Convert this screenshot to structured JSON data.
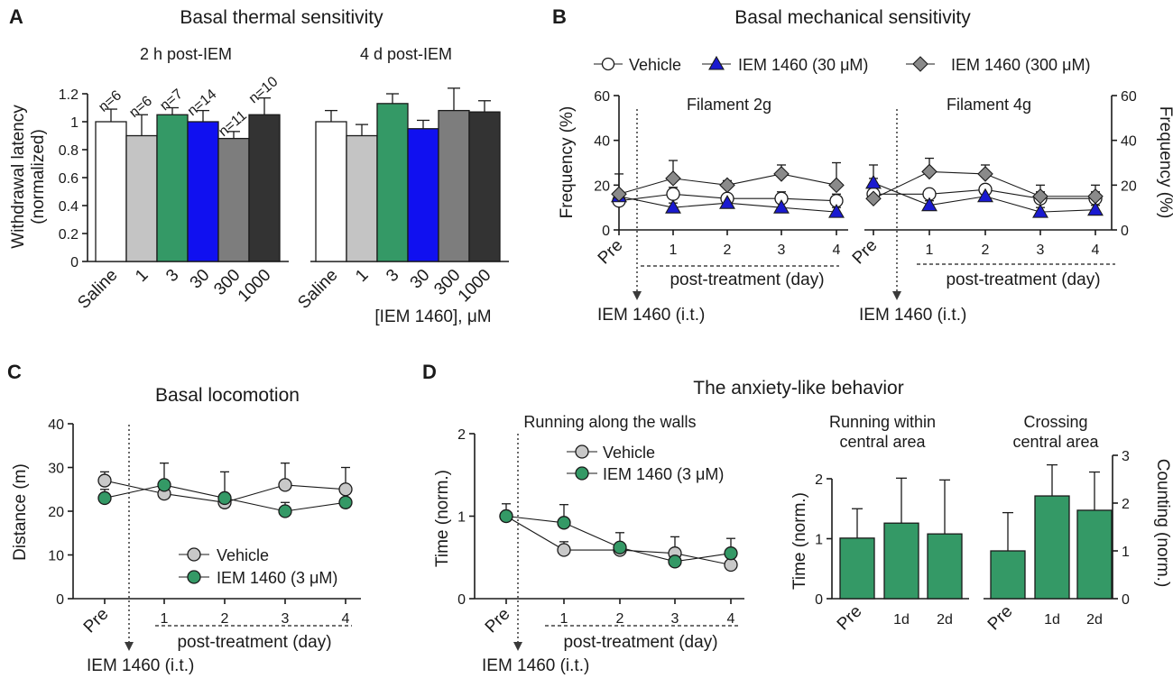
{
  "figure": {
    "panel_labels": [
      "A",
      "B",
      "C",
      "D"
    ],
    "colors": {
      "saline": "#ffffff",
      "iem1": "#c4c4c4",
      "iem3": "#349966",
      "iem30": "#1010f0",
      "iem300": "#7d7d7d",
      "iem1000": "#333333",
      "vehicle": "#ffffff",
      "iem30_tri": "#1a1ad0",
      "iem300_diamond": "#8a8a8a",
      "green": "#349966",
      "grey": "#c8c8c8"
    }
  },
  "chart_data": [
    {
      "id": "A",
      "type": "bar",
      "title": "Basal thermal sensitivity",
      "ylabel_lines": [
        "Withdrawal latency",
        "(normalized)"
      ],
      "xlabel": "[IEM 1460], μM",
      "ylim": [
        0,
        1.2
      ],
      "yticks": [
        "0",
        "0.2",
        "0.4",
        "0.6",
        "0.8",
        "1",
        "1.2"
      ],
      "categories": [
        "Saline",
        "1",
        "3",
        "30",
        "300",
        "1000"
      ],
      "n_labels": [
        "n=6",
        "n=6",
        "n=7",
        "n=14",
        "n=11",
        "n=10"
      ],
      "groups": [
        {
          "name": "2 h post-IEM",
          "values": [
            1.0,
            0.9,
            1.05,
            1.0,
            0.88,
            1.05
          ],
          "errors": [
            0.09,
            0.15,
            0.05,
            0.08,
            0.05,
            0.12
          ]
        },
        {
          "name": "4 d post-IEM",
          "values": [
            1.0,
            0.9,
            1.13,
            0.95,
            1.08,
            1.07
          ],
          "errors": [
            0.08,
            0.08,
            0.07,
            0.06,
            0.16,
            0.08
          ]
        }
      ]
    },
    {
      "id": "B",
      "type": "line",
      "title": "Basal mechanical sensitivity",
      "ylabel_left": "Frequency (%)",
      "ylabel_right": "Frequency (%)",
      "ylim": [
        0,
        60
      ],
      "yticks": [
        "0",
        "20",
        "40",
        "60"
      ],
      "categories": [
        "Pre",
        "1",
        "2",
        "3",
        "4"
      ],
      "xlabel": "post-treatment (day)",
      "arrow_label": "IEM 1460 (i.t.)",
      "legend": [
        "Vehicle",
        "IEM 1460 (30 μM)",
        "IEM 1460 (300 μM)"
      ],
      "panels": [
        {
          "subtitle": "Filament 2g",
          "series": [
            {
              "name": "Vehicle",
              "values": [
                13,
                16,
                14,
                14,
                13
              ],
              "errors": [
                2,
                3,
                2,
                3,
                3
              ]
            },
            {
              "name": "IEM 1460 (30 μM)",
              "values": [
                15,
                10,
                12,
                10,
                8
              ],
              "errors": [
                2,
                2,
                2,
                2,
                2
              ]
            },
            {
              "name": "IEM 1460 (300 μM)",
              "values": [
                16,
                23,
                20,
                25,
                20
              ],
              "errors": [
                9,
                8,
                2,
                4,
                10
              ]
            }
          ]
        },
        {
          "subtitle": "Filament 4g",
          "series": [
            {
              "name": "Vehicle",
              "values": [
                16,
                16,
                18,
                14,
                14
              ],
              "errors": [
                3,
                2,
                2,
                3,
                3
              ]
            },
            {
              "name": "IEM 1460 (30 μM)",
              "values": [
                21,
                11,
                15,
                8,
                9
              ],
              "errors": [
                2,
                2,
                2,
                2,
                2
              ]
            },
            {
              "name": "IEM 1460 (300 μM)",
              "values": [
                14,
                26,
                25,
                15,
                15
              ],
              "errors": [
                15,
                6,
                4,
                5,
                5
              ]
            }
          ]
        }
      ]
    },
    {
      "id": "C",
      "type": "line",
      "title": "Basal locomotion",
      "ylabel": "Distance (m)",
      "ylim": [
        0,
        40
      ],
      "yticks": [
        "0",
        "10",
        "20",
        "30",
        "40"
      ],
      "categories": [
        "Pre",
        "1",
        "2",
        "3",
        "4"
      ],
      "xlabel": "post-treatment (day)",
      "arrow_label": "IEM 1460 (i.t.)",
      "legend": [
        "Vehicle",
        "IEM 1460 (3 μM)"
      ],
      "series": [
        {
          "name": "Vehicle",
          "values": [
            27,
            24,
            22,
            26,
            25
          ],
          "errors": [
            2,
            1,
            1,
            5,
            5
          ]
        },
        {
          "name": "IEM 1460 (3 μM)",
          "values": [
            23,
            26,
            23,
            20,
            22
          ],
          "errors": [
            2,
            5,
            6,
            2,
            1
          ]
        }
      ]
    },
    {
      "id": "D",
      "type": "line",
      "title": "The anxiety-like behavior",
      "subtitle": "Running along the walls",
      "ylabel": "Time (norm.)",
      "ylim": [
        0,
        2
      ],
      "yticks": [
        "0",
        "1",
        "2"
      ],
      "categories": [
        "Pre",
        "1",
        "2",
        "3",
        "4"
      ],
      "xlabel": "post-treatment (day)",
      "arrow_label": "IEM 1460 (i.t.)",
      "legend": [
        "Vehicle",
        "IEM 1460 (3 μM)"
      ],
      "series": [
        {
          "name": "Vehicle",
          "values": [
            1.0,
            0.59,
            0.59,
            0.55,
            0.41
          ],
          "errors": [
            0.05,
            0.1,
            0.05,
            0.05,
            0.05
          ]
        },
        {
          "name": "IEM 1460 (3 μM)",
          "values": [
            1.0,
            0.92,
            0.62,
            0.45,
            0.55
          ],
          "errors": [
            0.15,
            0.22,
            0.18,
            0.3,
            0.18
          ]
        }
      ]
    },
    {
      "id": "D2",
      "type": "bar",
      "title_lines": [
        "Running within",
        "central area"
      ],
      "ylabel": "Time (norm.)",
      "ylim": [
        0,
        2
      ],
      "yticks": [
        "0",
        "1",
        "2"
      ],
      "categories": [
        "Pre",
        "1d",
        "2d"
      ],
      "values": [
        1.01,
        1.26,
        1.08
      ],
      "errors": [
        0.49,
        0.75,
        0.9
      ]
    },
    {
      "id": "D3",
      "type": "bar",
      "title_lines": [
        "Crossing",
        "central area"
      ],
      "ylabel": "Counting (norm.)",
      "ylim": [
        0,
        3
      ],
      "yticks": [
        "0",
        "1",
        "2",
        "3"
      ],
      "categories": [
        "Pre",
        "1d",
        "2d"
      ],
      "values": [
        1.0,
        2.15,
        1.85
      ],
      "errors": [
        0.8,
        0.65,
        0.8
      ]
    }
  ]
}
